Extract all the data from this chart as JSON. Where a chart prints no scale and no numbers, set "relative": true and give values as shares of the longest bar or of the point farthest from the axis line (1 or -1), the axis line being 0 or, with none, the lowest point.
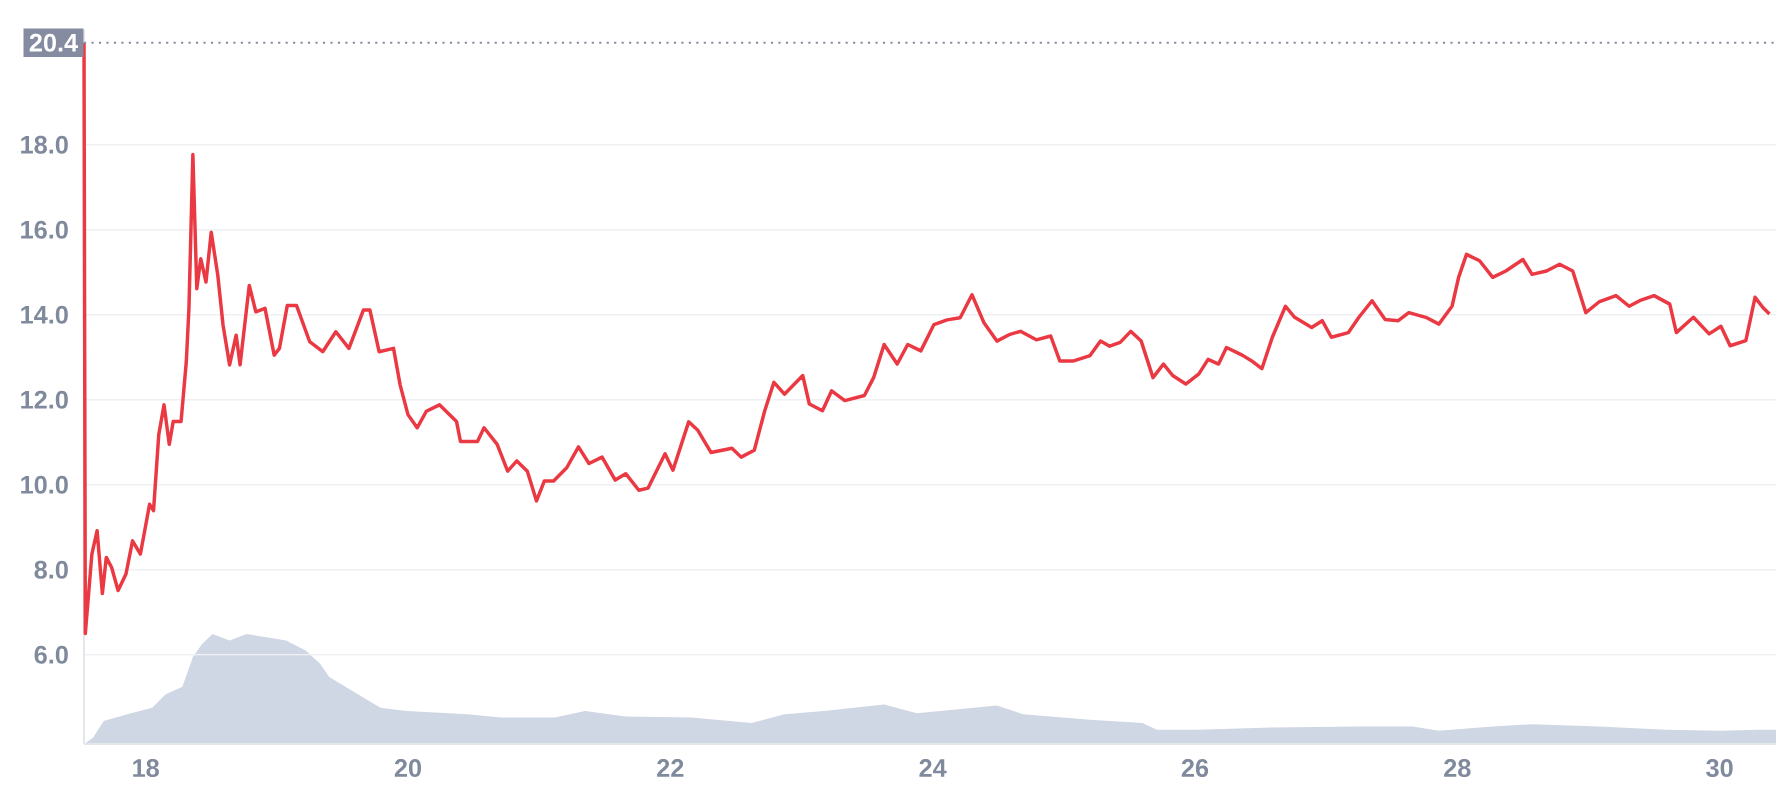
{
  "chart_data": [
    {
      "type": "line",
      "color": "#ea3943",
      "grid": "y",
      "line_style": "solid",
      "x": [
        17.53,
        17.54,
        17.59,
        17.63,
        17.67,
        17.7,
        17.74,
        17.79,
        17.85,
        17.9,
        17.96,
        18.03,
        18.06,
        18.1,
        18.14,
        18.18,
        18.21,
        18.27,
        18.31,
        18.33,
        18.36,
        18.39,
        18.42,
        18.46,
        18.5,
        18.55,
        18.59,
        18.64,
        18.69,
        18.72,
        18.79,
        18.84,
        18.91,
        18.98,
        19.02,
        19.08,
        19.15,
        19.25,
        19.35,
        19.45,
        19.55,
        19.66,
        19.71,
        19.78,
        19.89,
        19.94,
        20.0,
        20.07,
        20.14,
        20.24,
        20.37,
        20.4,
        20.53,
        20.58,
        20.68,
        20.76,
        20.83,
        20.91,
        20.98,
        21.04,
        21.11,
        21.21,
        21.3,
        21.38,
        21.48,
        21.58,
        21.66,
        21.76,
        21.83,
        21.96,
        22.02,
        22.14,
        22.21,
        22.31,
        22.47,
        22.54,
        22.64,
        22.72,
        22.79,
        22.87,
        23.01,
        23.06,
        23.16,
        23.23,
        23.33,
        23.48,
        23.55,
        23.63,
        23.73,
        23.81,
        23.91,
        24.01,
        24.11,
        24.21,
        24.3,
        24.39,
        24.49,
        24.59,
        24.67,
        24.79,
        24.9,
        24.97,
        25.07,
        25.2,
        25.28,
        25.35,
        25.43,
        25.51,
        25.59,
        25.68,
        25.76,
        25.83,
        25.93,
        26.03,
        26.1,
        26.18,
        26.24,
        26.36,
        26.43,
        26.51,
        26.59,
        26.69,
        26.76,
        26.89,
        26.97,
        27.04,
        27.17,
        27.25,
        27.35,
        27.45,
        27.55,
        27.63,
        27.76,
        27.86,
        27.96,
        28.01,
        28.07,
        28.17,
        28.27,
        28.37,
        28.5,
        28.57,
        28.68,
        28.78,
        28.88,
        28.98,
        29.08,
        29.21,
        29.31,
        29.39,
        29.5,
        29.62,
        29.67,
        29.8,
        29.92,
        30.01,
        30.08,
        30.2,
        30.27,
        30.33,
        30.38
      ],
      "values": [
        20.4,
        6.5,
        8.37,
        8.92,
        7.44,
        8.29,
        8.06,
        7.51,
        7.9,
        8.68,
        8.37,
        9.54,
        9.39,
        11.18,
        11.88,
        10.95,
        11.49,
        11.49,
        12.9,
        14.15,
        17.77,
        14.61,
        15.32,
        14.77,
        15.94,
        14.93,
        13.76,
        12.82,
        13.52,
        12.82,
        14.69,
        14.07,
        14.15,
        13.05,
        13.21,
        14.22,
        14.22,
        13.37,
        13.13,
        13.6,
        13.21,
        14.11,
        14.11,
        13.13,
        13.21,
        12.35,
        11.65,
        11.34,
        11.73,
        11.88,
        11.49,
        11.02,
        11.02,
        11.34,
        10.95,
        10.32,
        10.56,
        10.32,
        9.62,
        10.09,
        10.09,
        10.4,
        10.89,
        10.5,
        10.65,
        10.11,
        10.26,
        9.87,
        9.92,
        10.73,
        10.34,
        11.48,
        11.28,
        10.76,
        10.86,
        10.65,
        10.81,
        11.74,
        12.41,
        12.13,
        12.57,
        11.9,
        11.74,
        12.21,
        11.98,
        12.1,
        12.52,
        13.3,
        12.84,
        13.3,
        13.15,
        13.77,
        13.88,
        13.93,
        14.47,
        13.82,
        13.38,
        13.54,
        13.61,
        13.41,
        13.5,
        12.91,
        12.91,
        13.04,
        13.38,
        13.26,
        13.35,
        13.61,
        13.38,
        12.52,
        12.84,
        12.57,
        12.37,
        12.61,
        12.95,
        12.84,
        13.23,
        13.05,
        12.92,
        12.73,
        13.47,
        14.2,
        13.94,
        13.7,
        13.86,
        13.47,
        13.58,
        13.94,
        14.33,
        13.89,
        13.86,
        14.05,
        13.94,
        13.78,
        14.2,
        14.88,
        15.42,
        15.27,
        14.88,
        15.03,
        15.3,
        14.95,
        15.03,
        15.19,
        15.03,
        14.05,
        14.3,
        14.45,
        14.2,
        14.33,
        14.45,
        14.25,
        13.58,
        13.94,
        13.55,
        13.73,
        13.27,
        13.39,
        14.41,
        14.17,
        14.02
      ],
      "xlim": [
        17.53,
        30.43
      ],
      "xticks": [
        18,
        20,
        22,
        24,
        26,
        28,
        30
      ],
      "ylim": [
        3.9,
        20.7
      ],
      "yticks": [
        {
          "value": 6,
          "label": "6.0"
        },
        {
          "value": 8,
          "label": "8.0"
        },
        {
          "value": 10,
          "label": "10.0"
        },
        {
          "value": 12,
          "label": "12.0"
        },
        {
          "value": 14,
          "label": "14.0"
        },
        {
          "value": 16,
          "label": "16.0"
        },
        {
          "value": 18,
          "label": "18.0"
        }
      ],
      "ref_lines": [
        {
          "axis": "y",
          "value": 20.4,
          "label": "20.4",
          "color": "#858ca2",
          "line_style": "dotted"
        }
      ]
    },
    {
      "type": "area",
      "color": "#cfd6e4",
      "relative": true,
      "x": [
        17.53,
        17.6,
        17.68,
        17.86,
        18.05,
        18.15,
        18.28,
        18.36,
        18.43,
        18.51,
        18.64,
        18.77,
        18.92,
        19.07,
        19.22,
        19.33,
        19.4,
        19.58,
        19.79,
        19.99,
        20.45,
        20.71,
        21.12,
        21.35,
        21.66,
        22.16,
        22.62,
        22.87,
        23.17,
        23.63,
        23.88,
        24.49,
        24.69,
        25.2,
        25.6,
        25.71,
        26.01,
        26.59,
        27.25,
        27.66,
        27.86,
        28.27,
        28.57,
        29.08,
        29.59,
        30.0,
        30.31,
        30.43
      ],
      "values": [
        0,
        0.06,
        0.21,
        0.27,
        0.33,
        0.45,
        0.52,
        0.79,
        0.91,
        1,
        0.94,
        1,
        0.97,
        0.94,
        0.85,
        0.73,
        0.61,
        0.48,
        0.33,
        0.3,
        0.27,
        0.24,
        0.24,
        0.3,
        0.25,
        0.24,
        0.19,
        0.27,
        0.3,
        0.36,
        0.28,
        0.35,
        0.27,
        0.22,
        0.19,
        0.13,
        0.13,
        0.15,
        0.16,
        0.16,
        0.12,
        0.16,
        0.18,
        0.16,
        0.13,
        0.12,
        0.13,
        0.13
      ],
      "xlim": [
        17.53,
        30.43
      ]
    }
  ]
}
